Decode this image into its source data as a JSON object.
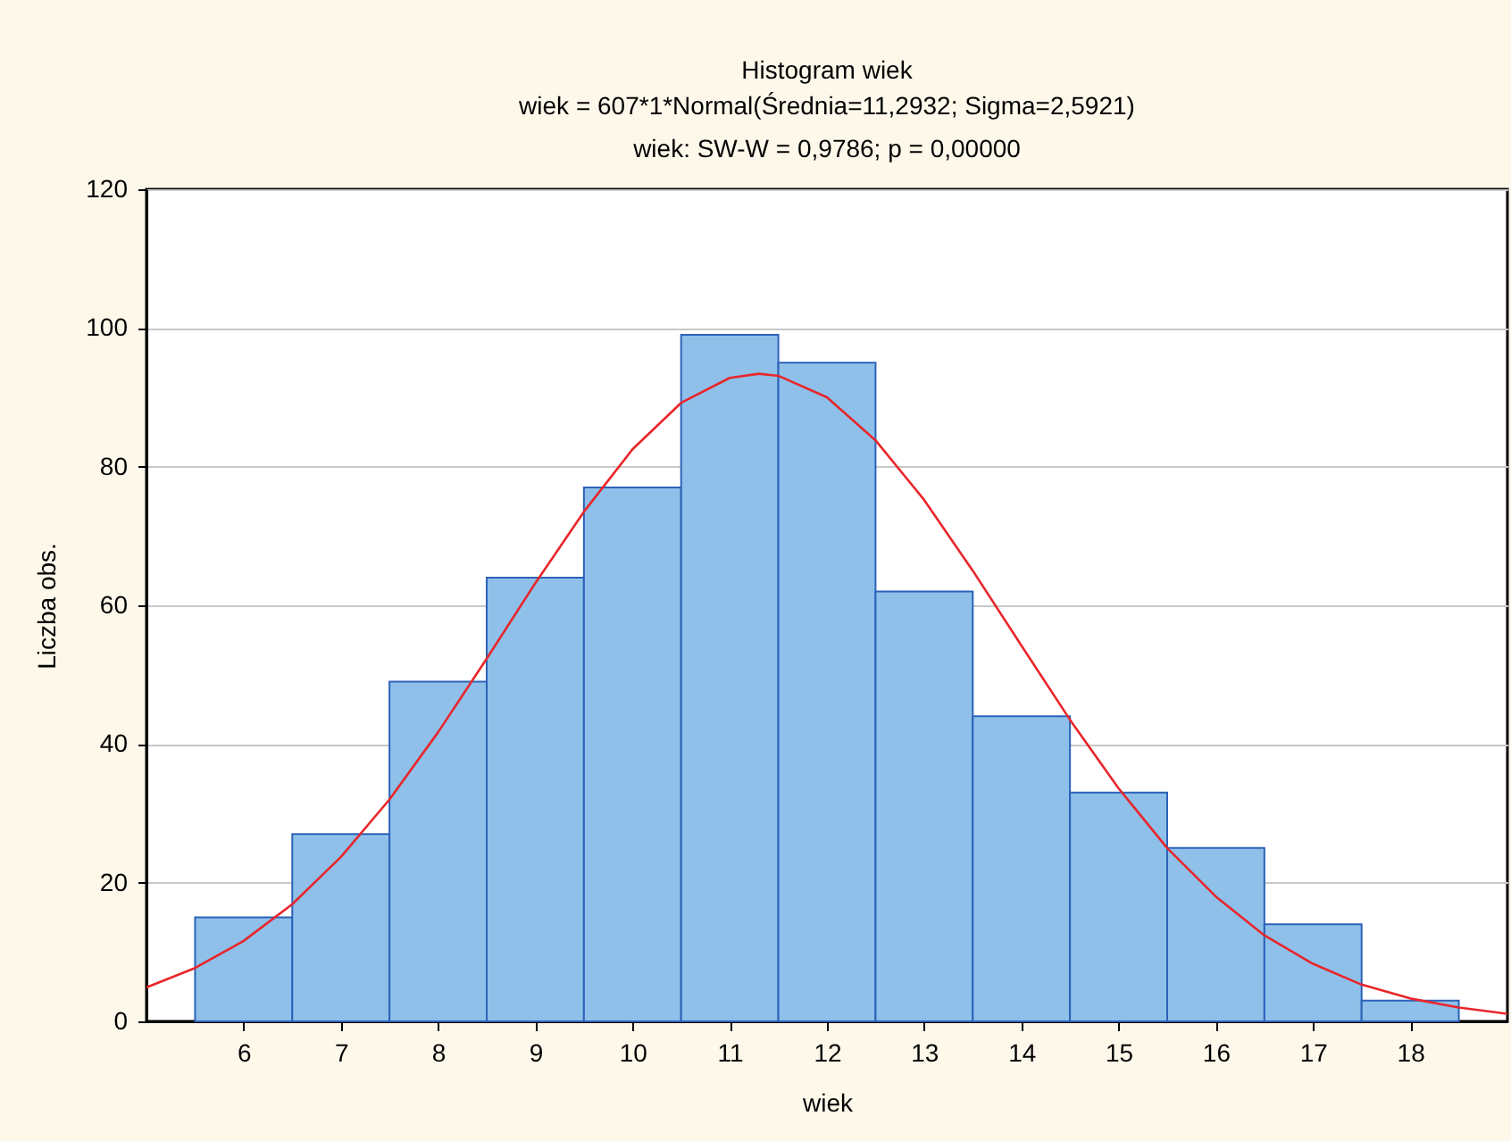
{
  "chart_data": {
    "type": "histogram",
    "title": "Histogram wiek",
    "subtitle": "wiek = 607*1*Normal(Średnia=11,2932; Sigma=2,5921)\nwiek:   SW-W = 0,9786; p = 0,00000",
    "xlabel": "wiek",
    "ylabel": "Liczba obs.",
    "bins": [
      5.5,
      6.5,
      7.5,
      8.5,
      9.5,
      10.5,
      11.5,
      12.5,
      13.5,
      14.5,
      15.5,
      16.5,
      17.5,
      18.5
    ],
    "series": [
      {
        "type": "histogram",
        "color": "#8ec0ea",
        "values": [
          15,
          27,
          49,
          64,
          77,
          99,
          95,
          62,
          44,
          33,
          25,
          14,
          3
        ]
      },
      {
        "type": "line",
        "color": "#e8262b",
        "x": [
          5,
          5.5,
          6,
          6.5,
          7,
          7.5,
          8,
          8.5,
          9,
          9.5,
          10,
          10.5,
          11,
          11.3,
          11.5,
          12,
          12.5,
          13,
          13.5,
          14,
          14.5,
          15,
          15.5,
          16,
          16.5,
          17,
          17.5,
          18,
          18.5,
          19
        ],
        "values": [
          4.9,
          7.7,
          11.6,
          16.9,
          23.7,
          32.0,
          41.7,
          52.3,
          63.2,
          73.5,
          82.5,
          89.2,
          92.8,
          93.4,
          93.1,
          90.0,
          83.8,
          75.2,
          65.0,
          54.2,
          43.5,
          33.6,
          25.0,
          18.0,
          12.4,
          8.3,
          5.3,
          3.3,
          2.0,
          1.1
        ]
      }
    ],
    "xlim": [
      5,
      19
    ],
    "xticks": [
      6,
      7,
      8,
      9,
      10,
      11,
      12,
      13,
      14,
      15,
      16,
      17,
      18
    ],
    "ylim": [
      0,
      120
    ],
    "yticks": [
      0,
      20,
      40,
      60,
      80,
      100,
      120
    ],
    "grid": "y"
  }
}
